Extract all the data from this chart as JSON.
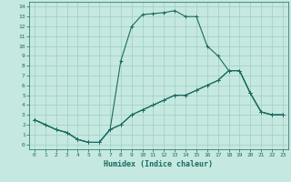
{
  "title": "",
  "xlabel": "Humidex (Indice chaleur)",
  "background_color": "#c5e8e0",
  "grid_color": "#9ecfc4",
  "line_color": "#1a6b60",
  "xlim": [
    -0.5,
    23.5
  ],
  "ylim": [
    -0.5,
    14.5
  ],
  "xticks": [
    0,
    1,
    2,
    3,
    4,
    5,
    6,
    7,
    8,
    9,
    10,
    11,
    12,
    13,
    14,
    15,
    16,
    17,
    18,
    19,
    20,
    21,
    22,
    23
  ],
  "yticks": [
    0,
    1,
    2,
    3,
    4,
    5,
    6,
    7,
    8,
    9,
    10,
    11,
    12,
    13,
    14
  ],
  "curve1_x": [
    0,
    1,
    2,
    3,
    4,
    5,
    6,
    7,
    8,
    9,
    10,
    11,
    12,
    13,
    14,
    15,
    16,
    17,
    18,
    19,
    20,
    21,
    22,
    23
  ],
  "curve1_y": [
    2.5,
    2.0,
    1.5,
    1.2,
    0.5,
    0.2,
    0.2,
    1.5,
    2.0,
    3.0,
    3.5,
    4.0,
    4.5,
    5.0,
    5.0,
    5.5,
    6.0,
    6.5,
    7.5,
    7.5,
    5.2,
    3.3,
    3.0,
    3.0
  ],
  "curve2_x": [
    0,
    1,
    2,
    3,
    4,
    5,
    6,
    7,
    8,
    9,
    10,
    11,
    12,
    13,
    14,
    15,
    16,
    17,
    18,
    19,
    20,
    21,
    22,
    23
  ],
  "curve2_y": [
    2.5,
    2.0,
    1.5,
    1.2,
    0.5,
    0.2,
    0.2,
    1.5,
    8.5,
    12.0,
    13.2,
    13.3,
    13.4,
    13.6,
    13.0,
    13.0,
    10.0,
    9.0,
    7.5,
    7.5,
    5.2,
    3.3,
    3.0,
    3.0
  ],
  "curve3_x": [
    0,
    1,
    2,
    3,
    4,
    5,
    6,
    7,
    8,
    9,
    10,
    11,
    12,
    13,
    14,
    15,
    16,
    17,
    18,
    19,
    20,
    21,
    22,
    23
  ],
  "curve3_y": [
    2.5,
    2.0,
    1.5,
    1.2,
    0.5,
    0.2,
    0.2,
    1.5,
    2.0,
    3.0,
    3.5,
    4.0,
    4.5,
    5.0,
    5.0,
    5.5,
    6.0,
    6.5,
    7.5,
    7.5,
    5.2,
    3.3,
    3.0,
    3.0
  ]
}
